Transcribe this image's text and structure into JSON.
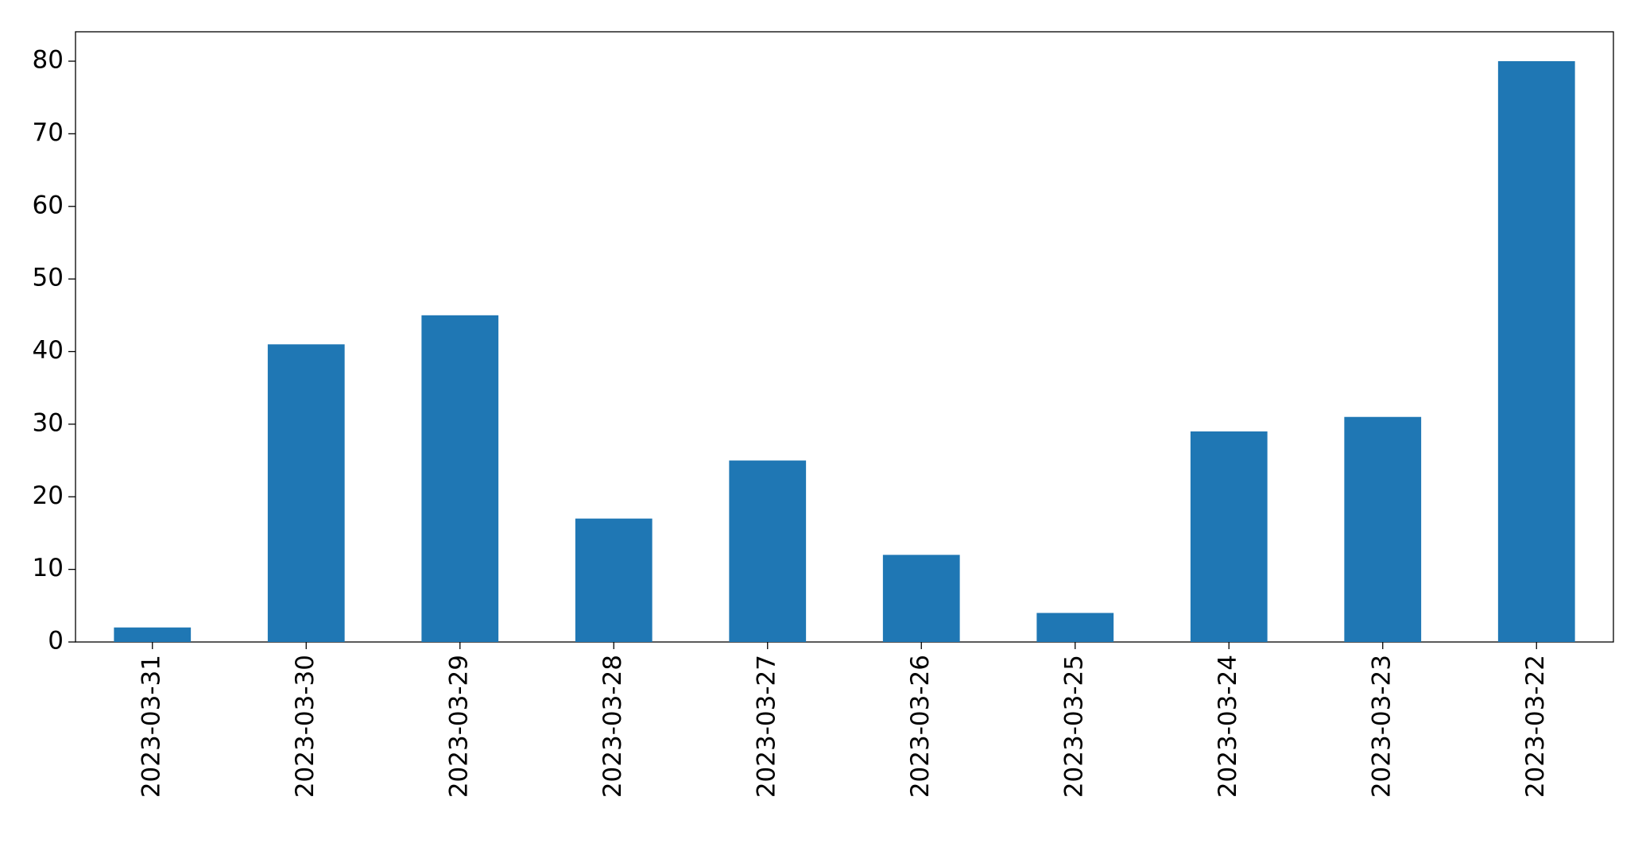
{
  "chart_data": {
    "type": "bar",
    "categories": [
      "2023-03-31",
      "2023-03-30",
      "2023-03-29",
      "2023-03-28",
      "2023-03-27",
      "2023-03-26",
      "2023-03-25",
      "2023-03-24",
      "2023-03-23",
      "2023-03-22"
    ],
    "values": [
      2,
      41,
      45,
      17,
      25,
      12,
      4,
      29,
      31,
      80
    ],
    "color": "#1f77b4",
    "ylim": [
      0,
      84.05
    ],
    "yticks": [
      0,
      10,
      20,
      30,
      40,
      50,
      60,
      70,
      80
    ],
    "grid": false
  }
}
